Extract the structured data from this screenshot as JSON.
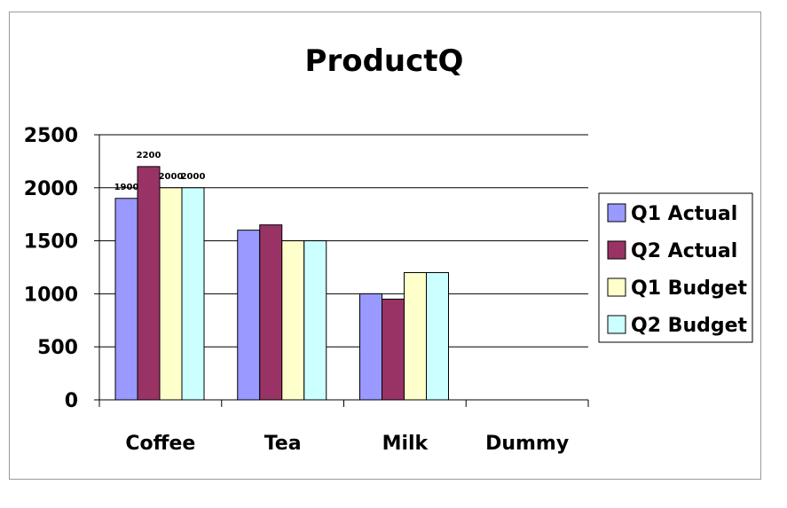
{
  "chart_data": {
    "type": "bar",
    "title": "ProductQ",
    "xlabel": "",
    "ylabel": "",
    "categories": [
      "Coffee",
      "Tea",
      "Milk",
      "Dummy"
    ],
    "ylim": [
      0,
      2500
    ],
    "yticks": [
      0,
      500,
      1000,
      1500,
      2000,
      2500
    ],
    "grid": true,
    "legend_position": "right",
    "series": [
      {
        "name": "Q1 Actual",
        "color": "#9999ff",
        "values": [
          1900,
          1600,
          1000,
          null
        ]
      },
      {
        "name": "Q2 Actual",
        "color": "#993366",
        "values": [
          2200,
          1650,
          950,
          null
        ]
      },
      {
        "name": "Q1 Budget",
        "color": "#ffffcc",
        "values": [
          2000,
          1500,
          1200,
          null
        ]
      },
      {
        "name": "Q2 Budget",
        "color": "#ccffff",
        "values": [
          2000,
          1500,
          1200,
          null
        ]
      }
    ],
    "data_labels": {
      "category_index": 0,
      "series_labels": [
        "1900",
        "2200",
        "2000",
        "2000"
      ]
    }
  }
}
